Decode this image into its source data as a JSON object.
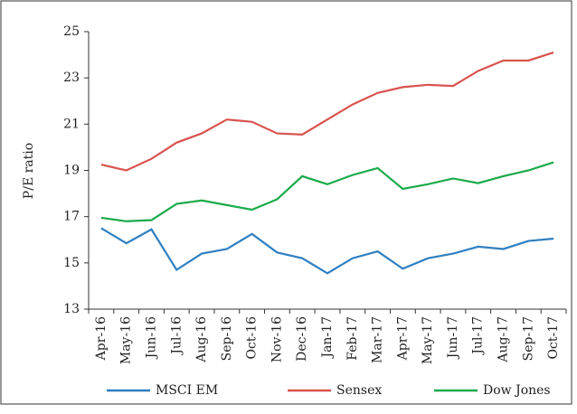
{
  "chart_data": {
    "type": "line",
    "y_label": "P/E ratio",
    "categories": [
      "Apr-16",
      "May-16",
      "Jun-16",
      "Jul-16",
      "Aug-16",
      "Sep-16",
      "Oct-16",
      "Nov-16",
      "Dec-16",
      "Jan-17",
      "Feb-17",
      "Mar-17",
      "Apr-17",
      "May-17",
      "Jun-17",
      "Jul-17",
      "Aug-17",
      "Sep-17",
      "Oct-17"
    ],
    "series": [
      {
        "name": "MSCI EM",
        "color": "#2f7fc1",
        "values": [
          16.5,
          15.85,
          16.45,
          14.7,
          15.4,
          15.6,
          16.25,
          15.45,
          15.2,
          14.55,
          15.2,
          15.5,
          14.75,
          15.2,
          15.4,
          15.7,
          15.6,
          15.95,
          16.05
        ]
      },
      {
        "name": "Sensex",
        "color": "#d9534f",
        "values": [
          19.25,
          19.0,
          19.5,
          20.2,
          20.6,
          21.2,
          21.1,
          20.6,
          20.55,
          21.2,
          21.85,
          22.35,
          22.6,
          22.7,
          22.65,
          23.3,
          23.75,
          23.75,
          24.1
        ]
      },
      {
        "name": "Dow Jones",
        "color": "#1aaa4a",
        "values": [
          16.95,
          16.8,
          16.85,
          17.55,
          17.7,
          17.5,
          17.3,
          17.75,
          18.75,
          18.4,
          18.8,
          19.1,
          18.2,
          18.4,
          18.65,
          18.45,
          18.75,
          19.0,
          19.35
        ]
      }
    ],
    "ylim": [
      13,
      25
    ],
    "yticks": [
      13,
      15,
      17,
      19,
      21,
      23,
      25
    ],
    "grid": false,
    "legend": "bottom"
  }
}
